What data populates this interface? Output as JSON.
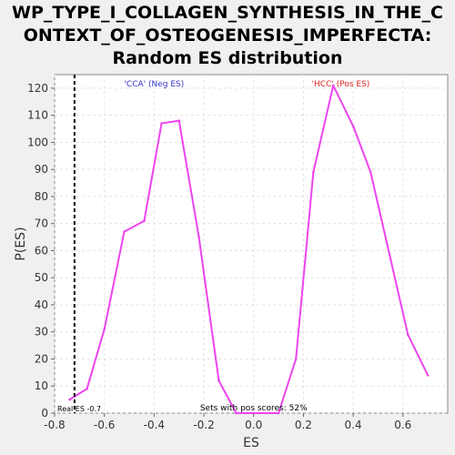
{
  "chart_data": {
    "type": "line",
    "title_lines": [
      "WP_TYPE_I_COLLAGEN_SYNTHESIS_IN_THE_C",
      "ONTEXT_OF_OSTEOGENESIS_IMPERFECTA:",
      "Random ES distribution"
    ],
    "xlabel": "ES",
    "ylabel": "P(ES)",
    "xlim": [
      -0.8,
      0.78
    ],
    "ylim": [
      0,
      125
    ],
    "x_ticks": [
      -0.8,
      -0.6,
      -0.4,
      -0.2,
      0.0,
      0.2,
      0.4,
      0.6
    ],
    "x_tick_labels": [
      "-0.8",
      "-0.6",
      "-0.4",
      "-0.2",
      "0.0",
      "0.2",
      "0.4",
      "0.6"
    ],
    "y_ticks": [
      0,
      10,
      20,
      30,
      40,
      50,
      60,
      70,
      80,
      90,
      100,
      110,
      120
    ],
    "y_tick_labels": [
      "0",
      "10",
      "20",
      "30",
      "40",
      "50",
      "60",
      "70",
      "80",
      "90",
      "100",
      "110",
      "120"
    ],
    "grid": true,
    "series": [
      {
        "color": "#ee44ee",
        "x": [
          -0.74,
          -0.67,
          -0.6,
          -0.52,
          -0.44,
          -0.37,
          -0.3,
          -0.22,
          -0.14,
          -0.07,
          0.0,
          0.1,
          0.17,
          0.24,
          0.32,
          0.4,
          0.47,
          0.55,
          0.62,
          0.7
        ],
        "y": [
          5,
          9,
          31,
          67,
          71,
          107,
          108,
          65,
          12,
          0,
          0,
          0,
          20,
          89,
          121,
          106,
          89,
          57,
          29,
          14
        ]
      }
    ],
    "real_es": -0.72,
    "annotations": {
      "neg_label": "'CCA' (Neg ES)",
      "neg_color": "#3333cc",
      "pos_label": "'HCC' (Pos ES)",
      "pos_color": "#dd2222",
      "real_es_label": "Real ES -0.7",
      "pos_scores_label": "Sets with pos scores: 52%"
    }
  }
}
